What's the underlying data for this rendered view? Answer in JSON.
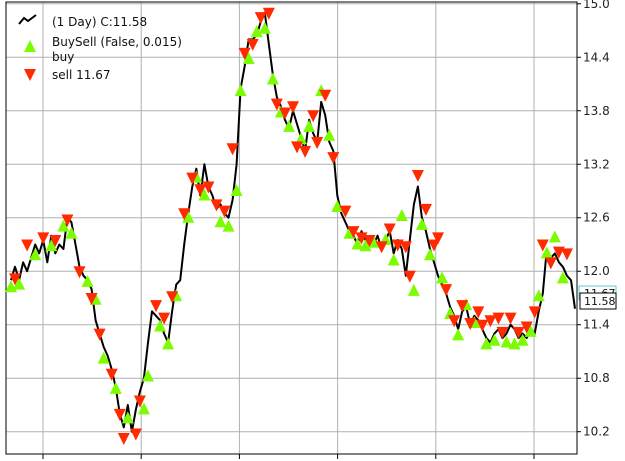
{
  "colors": {
    "price_line": "#000000",
    "buy_marker": "#7CFC00",
    "sell_marker": "#FF2A00",
    "grid": "#b0b0b0",
    "axes": "#000000",
    "last_price_box": "#5fc9d6"
  },
  "legend": {
    "line_label": "(1 Day) C:11.58",
    "buysell_label": "BuySell (False, 0.015)",
    "buy_label": "buy",
    "sell_label": "sell 11.67",
    "placement": "top-left"
  },
  "last_price": {
    "label": "11.58",
    "hidden_label": "11.67",
    "value": 11.58
  },
  "chart_data": {
    "type": "line",
    "ylim": [
      9.95,
      15.02
    ],
    "yticks": [
      10.2,
      10.8,
      11.4,
      12.0,
      12.6,
      13.2,
      13.8,
      14.4,
      15.0
    ],
    "ytick_labels": [
      "10.2",
      "10.8",
      "11.4",
      "12.0",
      "12.6",
      "13.2",
      "13.8",
      "14.4",
      "15.0"
    ],
    "grid": true,
    "y_axis_side": "right",
    "xtick_count": 6,
    "series": [
      {
        "role": "close",
        "values": [
          11.9,
          12.05,
          11.9,
          12.1,
          12.0,
          12.15,
          12.3,
          12.2,
          12.35,
          12.1,
          12.4,
          12.2,
          12.3,
          12.25,
          12.6,
          12.55,
          12.3,
          12.05,
          11.95,
          11.9,
          11.8,
          11.45,
          11.3,
          11.15,
          11.05,
          10.9,
          10.7,
          10.4,
          10.25,
          10.5,
          10.2,
          10.45,
          10.65,
          10.8,
          11.2,
          11.55,
          11.5,
          11.45,
          11.3,
          11.2,
          11.55,
          11.85,
          11.9,
          12.3,
          12.65,
          12.95,
          13.15,
          12.85,
          13.2,
          12.95,
          12.85,
          12.7,
          12.75,
          12.65,
          12.6,
          12.8,
          13.2,
          14.05,
          14.3,
          14.6,
          14.6,
          14.65,
          14.8,
          14.9,
          14.55,
          14.2,
          13.95,
          13.85,
          13.7,
          13.6,
          13.8,
          13.65,
          13.5,
          13.35,
          13.7,
          13.55,
          13.45,
          13.9,
          13.75,
          13.45,
          13.35,
          12.85,
          12.65,
          12.55,
          12.45,
          12.4,
          12.3,
          12.45,
          12.35,
          12.3,
          12.3,
          12.4,
          12.25,
          12.35,
          12.45,
          12.2,
          12.35,
          12.25,
          11.95,
          12.35,
          12.75,
          12.95,
          12.6,
          12.45,
          12.25,
          12.1,
          11.95,
          11.85,
          11.75,
          11.6,
          11.5,
          11.35,
          11.55,
          11.6,
          11.4,
          11.5,
          11.45,
          11.35,
          11.25,
          11.2,
          11.3,
          11.35,
          11.25,
          11.3,
          11.4,
          11.35,
          11.25,
          11.3,
          11.25,
          11.35,
          11.3,
          11.55,
          11.75,
          12.25,
          12.15,
          12.2,
          12.1,
          12.05,
          11.95,
          11.9,
          11.58
        ]
      }
    ],
    "buy_signals": [
      [
        0,
        11.82
      ],
      [
        2,
        11.85
      ],
      [
        6,
        12.18
      ],
      [
        10,
        12.28
      ],
      [
        13,
        12.5
      ],
      [
        15,
        12.42
      ],
      [
        19,
        11.88
      ],
      [
        21,
        11.68
      ],
      [
        23,
        11.02
      ],
      [
        26,
        10.68
      ],
      [
        29,
        10.35
      ],
      [
        33,
        10.45
      ],
      [
        34,
        10.82
      ],
      [
        37,
        11.38
      ],
      [
        39,
        11.18
      ],
      [
        41,
        11.72
      ],
      [
        44,
        12.6
      ],
      [
        46,
        13.05
      ],
      [
        48,
        12.85
      ],
      [
        52,
        12.55
      ],
      [
        54,
        12.5
      ],
      [
        56,
        12.9
      ],
      [
        57,
        14.02
      ],
      [
        59,
        14.38
      ],
      [
        61,
        14.68
      ],
      [
        63,
        14.72
      ],
      [
        65,
        14.15
      ],
      [
        67,
        13.78
      ],
      [
        69,
        13.62
      ],
      [
        72,
        13.48
      ],
      [
        74,
        13.62
      ],
      [
        77,
        14.02
      ],
      [
        79,
        13.52
      ],
      [
        81,
        12.72
      ],
      [
        84,
        12.42
      ],
      [
        86,
        12.3
      ],
      [
        88,
        12.28
      ],
      [
        90,
        12.32
      ],
      [
        93,
        12.35
      ],
      [
        95,
        12.12
      ],
      [
        97,
        12.62
      ],
      [
        100,
        11.78
      ],
      [
        102,
        12.52
      ],
      [
        104,
        12.18
      ],
      [
        107,
        11.92
      ],
      [
        109,
        11.52
      ],
      [
        111,
        11.28
      ],
      [
        113,
        11.62
      ],
      [
        115,
        11.42
      ],
      [
        118,
        11.18
      ],
      [
        120,
        11.22
      ],
      [
        123,
        11.2
      ],
      [
        125,
        11.18
      ],
      [
        127,
        11.22
      ],
      [
        129,
        11.32
      ],
      [
        131,
        11.72
      ],
      [
        133,
        12.2
      ],
      [
        135,
        12.38
      ],
      [
        137,
        11.92
      ]
    ],
    "sell_signals": [
      [
        1,
        11.92
      ],
      [
        4,
        12.3
      ],
      [
        8,
        12.38
      ],
      [
        11,
        12.35
      ],
      [
        14,
        12.58
      ],
      [
        17,
        12.0
      ],
      [
        20,
        11.7
      ],
      [
        22,
        11.3
      ],
      [
        25,
        10.85
      ],
      [
        27,
        10.4
      ],
      [
        28,
        10.13
      ],
      [
        31,
        10.18
      ],
      [
        32,
        10.55
      ],
      [
        36,
        11.62
      ],
      [
        38,
        11.48
      ],
      [
        40,
        11.72
      ],
      [
        43,
        12.65
      ],
      [
        45,
        13.05
      ],
      [
        47,
        12.92
      ],
      [
        49,
        12.95
      ],
      [
        51,
        12.75
      ],
      [
        53,
        12.68
      ],
      [
        55,
        13.38
      ],
      [
        58,
        14.45
      ],
      [
        60,
        14.55
      ],
      [
        62,
        14.85
      ],
      [
        64,
        14.9
      ],
      [
        66,
        13.88
      ],
      [
        68,
        13.78
      ],
      [
        70,
        13.85
      ],
      [
        71,
        13.4
      ],
      [
        73,
        13.35
      ],
      [
        75,
        13.75
      ],
      [
        76,
        13.45
      ],
      [
        78,
        13.98
      ],
      [
        80,
        13.28
      ],
      [
        83,
        12.68
      ],
      [
        85,
        12.45
      ],
      [
        87,
        12.38
      ],
      [
        89,
        12.35
      ],
      [
        92,
        12.28
      ],
      [
        94,
        12.48
      ],
      [
        96,
        12.3
      ],
      [
        98,
        12.28
      ],
      [
        99,
        11.95
      ],
      [
        101,
        13.08
      ],
      [
        103,
        12.7
      ],
      [
        105,
        12.3
      ],
      [
        106,
        12.38
      ],
      [
        108,
        11.8
      ],
      [
        110,
        11.45
      ],
      [
        112,
        11.62
      ],
      [
        114,
        11.42
      ],
      [
        116,
        11.55
      ],
      [
        117,
        11.4
      ],
      [
        119,
        11.45
      ],
      [
        121,
        11.48
      ],
      [
        122,
        11.32
      ],
      [
        124,
        11.48
      ],
      [
        126,
        11.32
      ],
      [
        128,
        11.38
      ],
      [
        130,
        11.55
      ],
      [
        132,
        12.3
      ],
      [
        134,
        12.1
      ],
      [
        136,
        12.22
      ],
      [
        138,
        12.2
      ]
    ]
  }
}
